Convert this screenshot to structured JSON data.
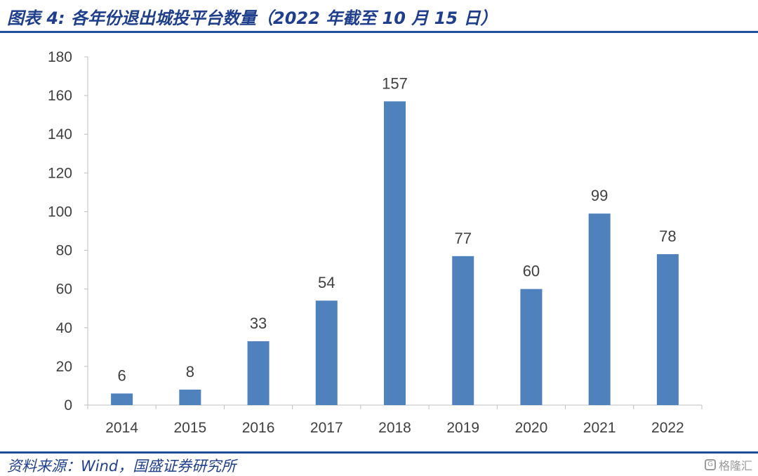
{
  "header": {
    "title": "图表 4: 各年份退出城投平台数量（2022 年截至 10 月 15 日）"
  },
  "footer": {
    "source": "资料来源：Wind，国盛证券研究所",
    "watermark": "格隆汇"
  },
  "colors": {
    "bar": "#4f81bd",
    "rule": "#1f4e9c",
    "title": "#1f3f8c"
  },
  "chart_data": {
    "type": "bar",
    "categories": [
      "2014",
      "2015",
      "2016",
      "2017",
      "2018",
      "2019",
      "2020",
      "2021",
      "2022"
    ],
    "values": [
      6,
      8,
      33,
      54,
      157,
      77,
      60,
      99,
      78
    ],
    "data_labels": [
      "6",
      "8",
      "33",
      "54",
      "157",
      "77",
      "60",
      "99",
      "78"
    ],
    "ylim": [
      0,
      180
    ],
    "yticks": [
      "0",
      "20",
      "40",
      "60",
      "80",
      "100",
      "120",
      "140",
      "160",
      "180"
    ],
    "grid": false,
    "legend": "none"
  }
}
